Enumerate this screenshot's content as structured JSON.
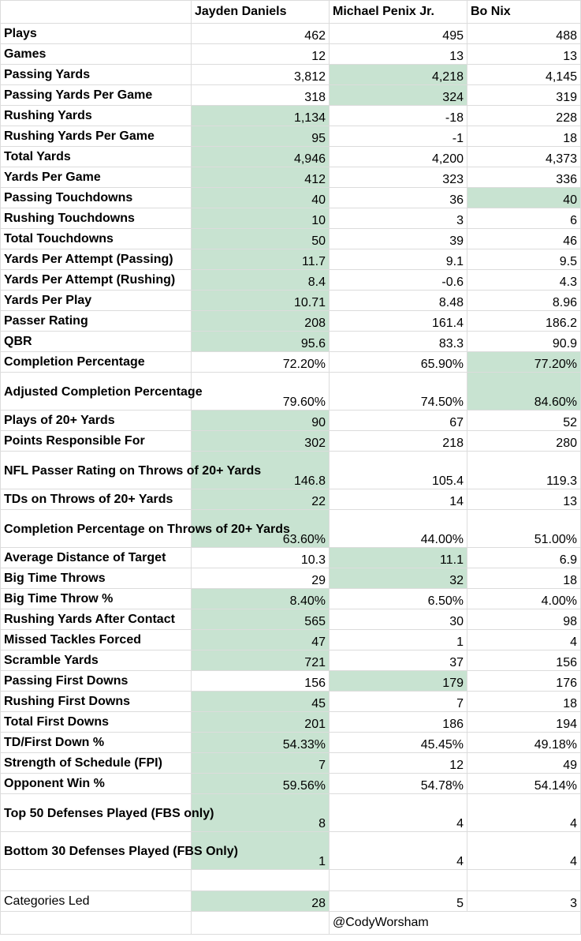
{
  "headers": [
    "",
    "Jayden Daniels",
    "Michael Penix Jr.",
    "Bo Nix"
  ],
  "highlight_color": "#c8e3d1",
  "rows": [
    {
      "label": "Plays",
      "values": [
        "462",
        "495",
        "488"
      ],
      "lead": []
    },
    {
      "label": "Games",
      "values": [
        "12",
        "13",
        "13"
      ],
      "lead": []
    },
    {
      "label": "Passing Yards",
      "values": [
        "3,812",
        "4,218",
        "4,145"
      ],
      "lead": [
        1
      ]
    },
    {
      "label": "Passing Yards Per Game",
      "values": [
        "318",
        "324",
        "319"
      ],
      "lead": [
        1
      ]
    },
    {
      "label": "Rushing Yards",
      "values": [
        "1,134",
        "-18",
        "228"
      ],
      "lead": [
        0
      ]
    },
    {
      "label": "Rushing Yards Per Game",
      "values": [
        "95",
        "-1",
        "18"
      ],
      "lead": [
        0
      ]
    },
    {
      "label": "Total Yards",
      "values": [
        "4,946",
        "4,200",
        "4,373"
      ],
      "lead": [
        0
      ]
    },
    {
      "label": "Yards Per Game",
      "values": [
        "412",
        "323",
        "336"
      ],
      "lead": [
        0
      ]
    },
    {
      "label": "Passing Touchdowns",
      "values": [
        "40",
        "36",
        "40"
      ],
      "lead": [
        0,
        2
      ]
    },
    {
      "label": "Rushing Touchdowns",
      "values": [
        "10",
        "3",
        "6"
      ],
      "lead": [
        0
      ]
    },
    {
      "label": "Total Touchdowns",
      "values": [
        "50",
        "39",
        "46"
      ],
      "lead": [
        0
      ]
    },
    {
      "label": "Yards Per Attempt (Passing)",
      "values": [
        "11.7",
        "9.1",
        "9.5"
      ],
      "lead": [
        0
      ]
    },
    {
      "label": "Yards Per Attempt (Rushing)",
      "values": [
        "8.4",
        "-0.6",
        "4.3"
      ],
      "lead": [
        0
      ]
    },
    {
      "label": "Yards Per Play",
      "values": [
        "10.71",
        "8.48",
        "8.96"
      ],
      "lead": [
        0
      ]
    },
    {
      "label": "Passer Rating",
      "values": [
        "208",
        "161.4",
        "186.2"
      ],
      "lead": [
        0
      ]
    },
    {
      "label": "QBR",
      "values": [
        "95.6",
        "83.3",
        "90.9"
      ],
      "lead": [
        0
      ]
    },
    {
      "label": "Completion Percentage",
      "values": [
        "72.20%",
        "65.90%",
        "77.20%"
      ],
      "lead": [
        2
      ]
    },
    {
      "label": "Adjusted Completion Percentage",
      "values": [
        "79.60%",
        "74.50%",
        "84.60%"
      ],
      "lead": [
        2
      ],
      "tall": true
    },
    {
      "label": "Plays of 20+ Yards",
      "values": [
        "90",
        "67",
        "52"
      ],
      "lead": [
        0
      ]
    },
    {
      "label": "Points Responsible For",
      "values": [
        "302",
        "218",
        "280"
      ],
      "lead": [
        0
      ]
    },
    {
      "label": "NFL Passer Rating on Throws of 20+ Yards",
      "values": [
        "146.8",
        "105.4",
        "119.3"
      ],
      "lead": [
        0
      ],
      "tall": true
    },
    {
      "label": "TDs on Throws of 20+ Yards",
      "values": [
        "22",
        "14",
        "13"
      ],
      "lead": [
        0
      ]
    },
    {
      "label": "Completion Percentage on Throws of 20+ Yards",
      "values": [
        "63.60%",
        "44.00%",
        "51.00%"
      ],
      "lead": [
        0
      ],
      "tall": true
    },
    {
      "label": "Average Distance of Target",
      "values": [
        "10.3",
        "11.1",
        "6.9"
      ],
      "lead": [
        1
      ]
    },
    {
      "label": "Big Time Throws",
      "values": [
        "29",
        "32",
        "18"
      ],
      "lead": [
        1
      ]
    },
    {
      "label": "Big Time Throw %",
      "values": [
        "8.40%",
        "6.50%",
        "4.00%"
      ],
      "lead": [
        0
      ]
    },
    {
      "label": "Rushing Yards After Contact",
      "values": [
        "565",
        "30",
        "98"
      ],
      "lead": [
        0
      ]
    },
    {
      "label": "Missed Tackles Forced",
      "values": [
        "47",
        "1",
        "4"
      ],
      "lead": [
        0
      ]
    },
    {
      "label": "Scramble Yards",
      "values": [
        "721",
        "37",
        "156"
      ],
      "lead": [
        0
      ]
    },
    {
      "label": "Passing First Downs",
      "values": [
        "156",
        "179",
        "176"
      ],
      "lead": [
        1
      ]
    },
    {
      "label": "Rushing First Downs",
      "values": [
        "45",
        "7",
        "18"
      ],
      "lead": [
        0
      ]
    },
    {
      "label": "Total First Downs",
      "values": [
        "201",
        "186",
        "194"
      ],
      "lead": [
        0
      ]
    },
    {
      "label": "TD/First Down %",
      "values": [
        "54.33%",
        "45.45%",
        "49.18%"
      ],
      "lead": [
        0
      ]
    },
    {
      "label": "Strength of Schedule (FPI)",
      "values": [
        "7",
        "12",
        "49"
      ],
      "lead": [
        0
      ]
    },
    {
      "label": "Opponent Win %",
      "values": [
        "59.56%",
        "54.78%",
        "54.14%"
      ],
      "lead": [
        0
      ]
    },
    {
      "label": "Top 50 Defenses Played (FBS only)",
      "values": [
        "8",
        "4",
        "4"
      ],
      "lead": [
        0
      ],
      "tall": true
    },
    {
      "label": "Bottom 30 Defenses Played (FBS Only)",
      "values": [
        "1",
        "4",
        "4"
      ],
      "lead": [
        0
      ],
      "tall": true
    }
  ],
  "summary": {
    "label": "Categories Led",
    "values": [
      "28",
      "5",
      "3"
    ],
    "lead": [
      0
    ]
  },
  "credit": "@CodyWorsham"
}
